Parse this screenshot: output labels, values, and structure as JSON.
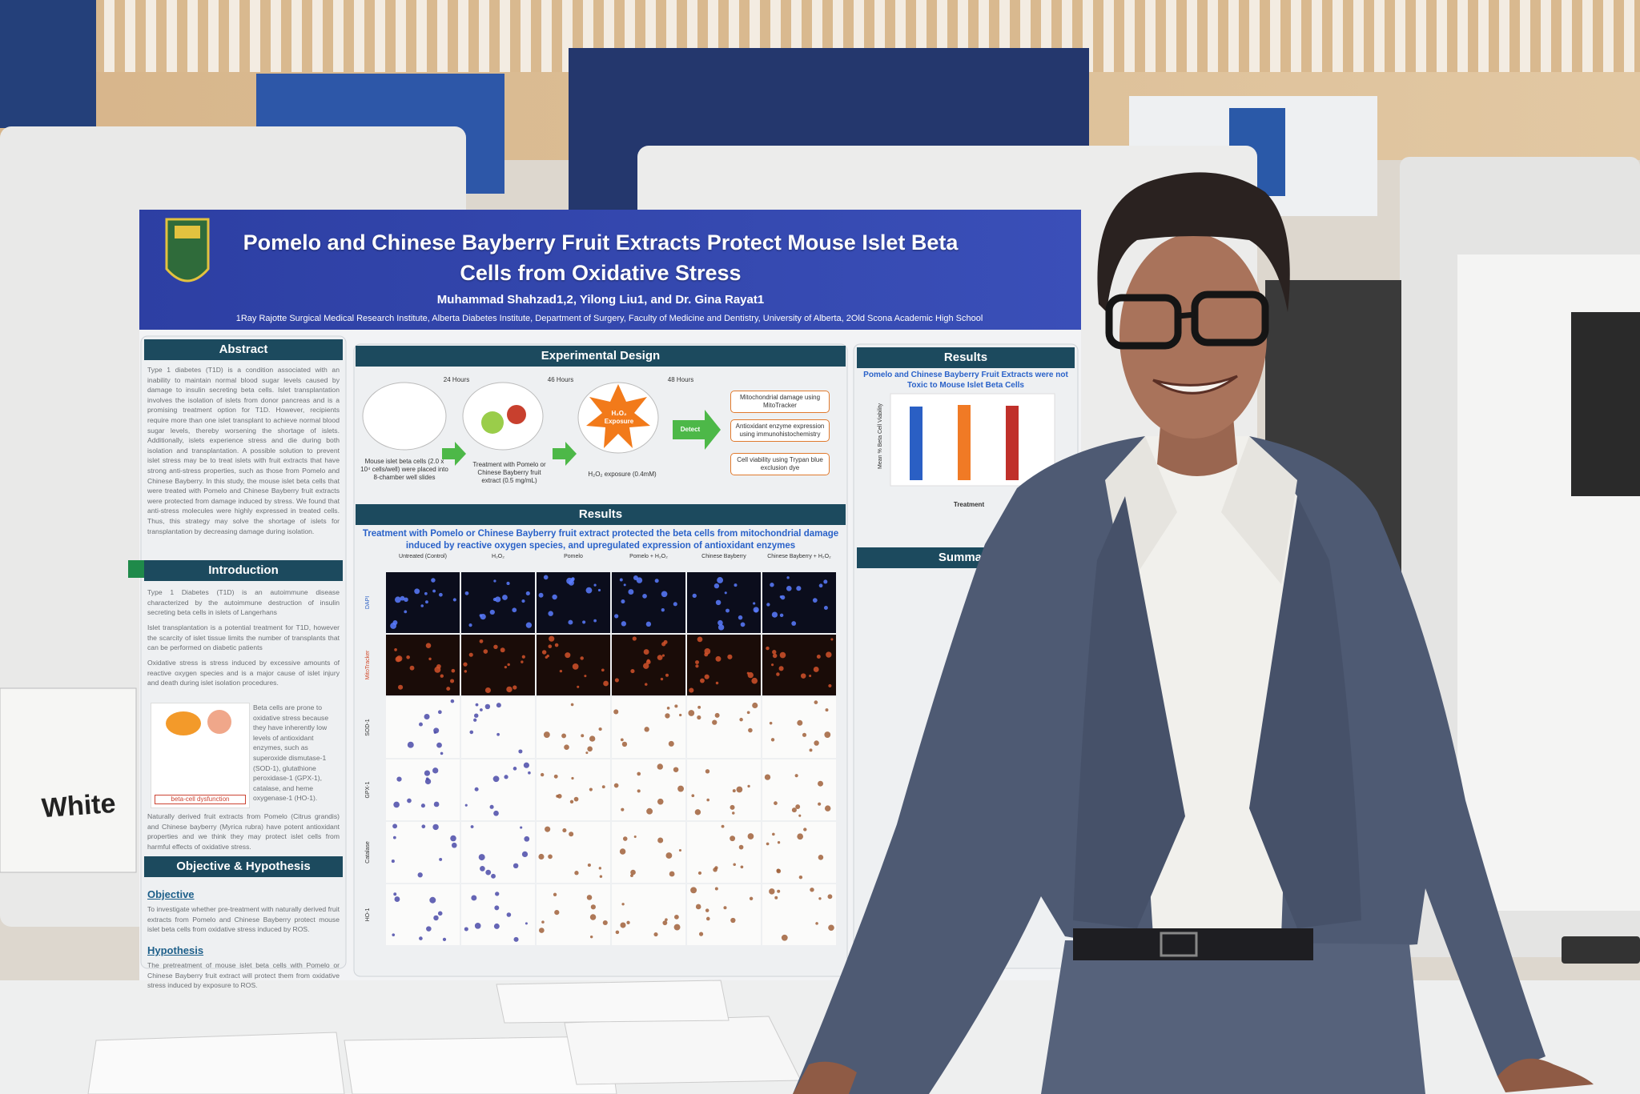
{
  "sign": "White",
  "poster": {
    "title": "Pomelo and Chinese Bayberry Fruit Extracts Protect Mouse Islet Beta Cells from Oxidative Stress",
    "authors": "Muhammad Shahzad1,2, Yilong Liu1, and Dr. Gina Rayat1",
    "affiliation": "1Ray Rajotte Surgical Medical Research Institute, Alberta Diabetes Institute, Department of Surgery, Faculty of Medicine and Dentistry, University of Alberta, 2Old Scona Academic High School",
    "abstract": {
      "heading": "Abstract",
      "text": "Type 1 diabetes (T1D) is a condition associated with an inability to maintain normal blood sugar levels caused by damage to insulin secreting beta cells. Islet transplantation involves the isolation of islets from donor pancreas and is a promising treatment option for T1D. However, recipients require more than one islet transplant to achieve normal blood sugar levels, thereby worsening the shortage of islets. Additionally, islets experience stress and die during both isolation and transplantation. A possible solution to prevent islet stress may be to treat islets with fruit extracts that have strong anti-stress properties, such as those from Pomelo and Chinese Bayberry. In this study, the mouse islet beta cells that were treated with Pomelo and Chinese Bayberry fruit extracts were protected from damage induced by stress. We found that anti-stress molecules were highly expressed in treated cells. Thus, this strategy may solve the shortage of islets for transplantation by decreasing damage during isolation."
    },
    "introduction": {
      "heading": "Introduction",
      "paragraphs": [
        "Type 1 Diabetes (T1D) is an autoimmune disease characterized by the autoimmune destruction of insulin secreting beta cells in islets of Langerhans",
        "Islet transplantation is a potential treatment for T1D, however the scarcity of islet tissue limits the number of transplants that can be performed on diabetic patients",
        "Oxidative stress is stress induced by excessive amounts of reactive oxygen species and is a major cause of islet injury and death during islet isolation procedures.",
        "Beta cells are prone to oxidative stress because they have inherently low levels of antioxidant enzymes, such as superoxide dismutase-1 (SOD-1), glutathione peroxidase-1 (GPX-1), catalase, and heme oxygenase-1 (HO-1).",
        "Naturally derived fruit extracts from Pomelo (Citrus grandis) and Chinese bayberry (Myrica rubra) have potent antioxidant properties and we think they may protect islet cells from harmful effects of oxidative stress."
      ],
      "figure_label": "beta-cell dysfunction"
    },
    "objective_hypothesis": {
      "heading": "Objective & Hypothesis",
      "objective_heading": "Objective",
      "objective": "To investigate whether pre-treatment with naturally derived fruit extracts from Pomelo and Chinese Bayberry protect mouse islet beta cells from oxidative stress induced by ROS.",
      "hypothesis_heading": "Hypothesis",
      "hypothesis": "The pretreatment of mouse islet beta cells with Pomelo or Chinese Bayberry fruit extract will protect them from oxidative stress induced by exposure to ROS."
    },
    "experimental_design": {
      "heading": "Experimental Design",
      "timeline": [
        "24 Hours",
        "46 Hours",
        "48 Hours"
      ],
      "steps": [
        "Mouse islet beta cells (2.0 x 10⁴ cells/well) were placed into 8-chamber well slides",
        "Treatment with Pomelo or Chinese Bayberry fruit extract (0.5 mg/mL)",
        "H₂O₂ exposure (0.4mM)"
      ],
      "exposure_label": "H₂O₂ Exposure",
      "detect_label": "Detect",
      "outcomes": [
        "Mitochondrial damage using MitoTracker",
        "Antioxidant enzyme expression using immunohistochemistry",
        "Cell viability using Trypan blue exclusion dye"
      ]
    },
    "results": {
      "heading": "Results",
      "caption": "Treatment with Pomelo or Chinese Bayberry fruit extract protected the beta cells from mitochondrial damage induced by reactive oxygen species, and upregulated expression of antioxidant enzymes",
      "columns": [
        "Untreated (Control)",
        "H₂O₂",
        "Pomelo",
        "Pomelo + H₂O₂",
        "Chinese Bayberry",
        "Chinese Bayberry + H₂O₂"
      ],
      "rows": [
        "DAPI",
        "MitoTracker",
        "SOD-1",
        "GPX-1",
        "Catalase",
        "HO-1"
      ]
    },
    "results_right": {
      "heading": "Results",
      "chart_title": "Pomelo and Chinese Bayberry Fruit Extracts were not Toxic to Mouse Islet Beta Cells",
      "y_label": "Mean % Beta Cell Viability",
      "x_label": "Treatment"
    },
    "summary": {
      "heading": "Summary"
    }
  }
}
